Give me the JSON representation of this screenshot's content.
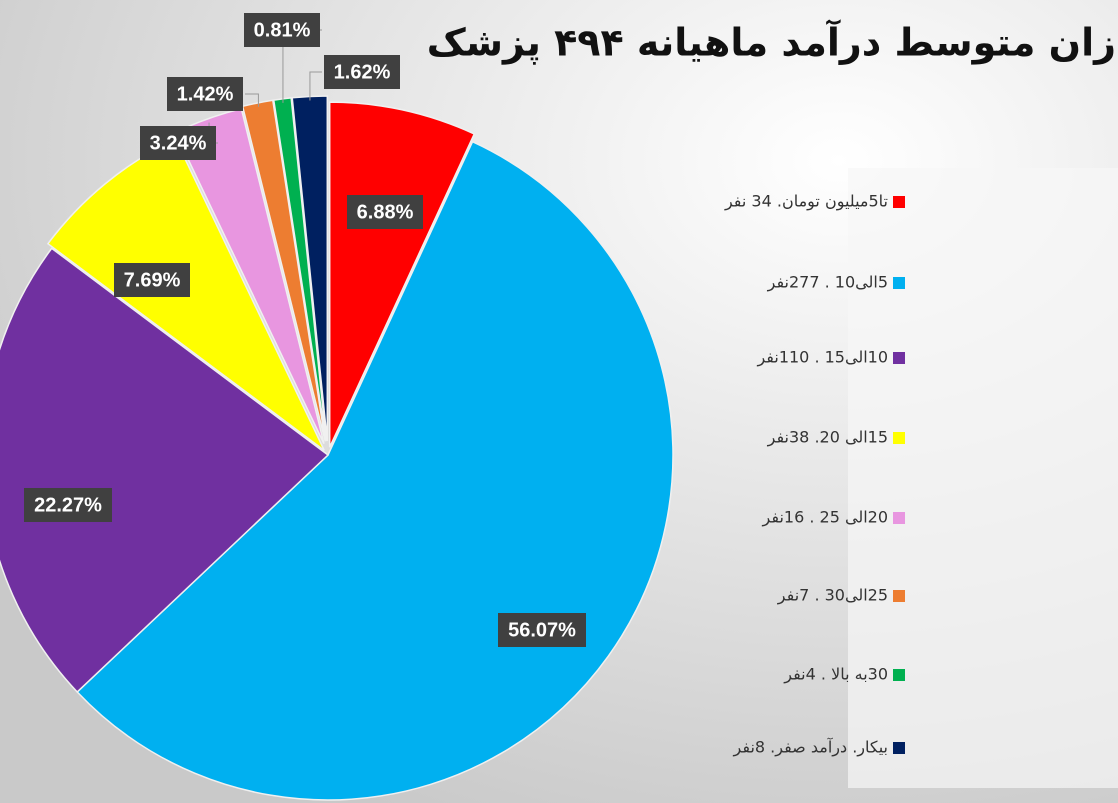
{
  "chart_data": {
    "type": "pie",
    "title": "زان متوسط درآمد ماهیانه ۴۹۴ پزشک",
    "categories": [
      "تا5میلیون تومان. 34 نفر",
      "5الی10 .  277نفر",
      "10الی15 . 110نفر",
      "15الی 20. 38نفر",
      "20الی 25 . 16نفر",
      "25الی30 . 7نفر",
      "30به بالا  . 4نفر",
      "بیکار. درآمد صفر. 8نفر"
    ],
    "values": [
      6.88,
      56.07,
      22.27,
      7.69,
      3.24,
      1.42,
      0.81,
      1.62
    ],
    "value_labels": [
      "6.88%",
      "56.07%",
      "22.27%",
      "7.69%",
      "3.24%",
      "1.42%",
      "0.81%",
      "1.62%"
    ],
    "colors": [
      "#ff0000",
      "#00b0f0",
      "#7030a0",
      "#ffff00",
      "#e896e0",
      "#ed7d31",
      "#00b050",
      "#002060"
    ],
    "legend": "right"
  }
}
